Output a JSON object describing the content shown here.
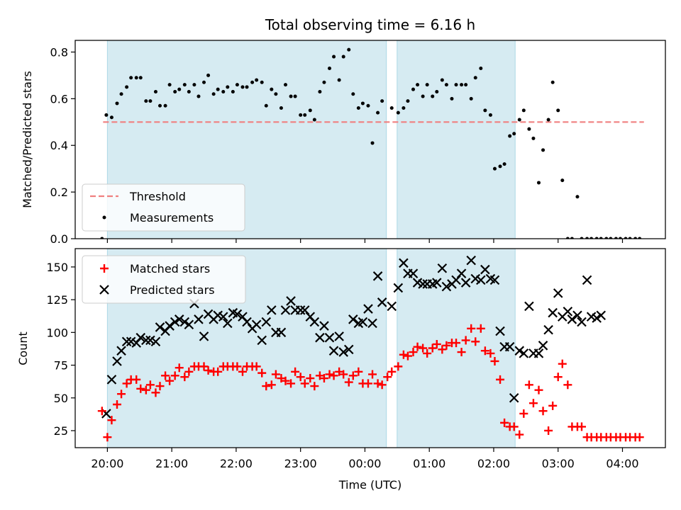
{
  "title": "Total observing time = 6.16 h",
  "colors": {
    "shade": "#add8e6",
    "threshold": "#f08080",
    "measurement": "#000000",
    "matched": "#ff0000",
    "predicted": "#000000"
  },
  "chart_data": [
    {
      "id": "ratio",
      "type": "scatter",
      "ylabel": "Matched/Predicted stars",
      "xlabel": "",
      "ylim": [
        0,
        0.85
      ],
      "yticks": [
        0.0,
        0.2,
        0.4,
        0.6,
        0.8
      ],
      "yticklabels": [
        "0.0",
        "0.2",
        "0.4",
        "0.6",
        "0.8"
      ],
      "legend": {
        "position": "lower-left",
        "items": [
          {
            "label": "Threshold",
            "kind": "dashed-line"
          },
          {
            "label": "Measurements",
            "kind": "dot"
          }
        ]
      },
      "threshold": {
        "y": 0.5,
        "x_start": "19:56",
        "x_end": "04:20"
      },
      "shaded_intervals": [
        [
          "20:00",
          "00:20"
        ],
        [
          "00:30",
          "02:20"
        ]
      ],
      "series": [
        {
          "label": "Measurements",
          "marker": "dot",
          "x": [
            "19:55",
            "19:59",
            "20:04",
            "20:09",
            "20:13",
            "20:18",
            "20:22",
            "20:27",
            "20:31",
            "20:36",
            "20:40",
            "20:45",
            "20:49",
            "20:54",
            "20:58",
            "21:03",
            "21:07",
            "21:12",
            "21:16",
            "21:21",
            "21:25",
            "21:30",
            "21:34",
            "21:39",
            "21:43",
            "21:48",
            "21:52",
            "21:57",
            "22:01",
            "22:06",
            "22:10",
            "22:15",
            "22:19",
            "22:24",
            "22:28",
            "22:33",
            "22:37",
            "22:42",
            "22:46",
            "22:51",
            "22:55",
            "23:00",
            "23:04",
            "23:09",
            "23:13",
            "23:18",
            "23:22",
            "23:27",
            "23:31",
            "23:36",
            "23:40",
            "23:45",
            "23:49",
            "23:54",
            "23:58",
            "00:03",
            "00:07",
            "00:12",
            "00:16",
            "00:25",
            "00:31",
            "00:36",
            "00:40",
            "00:45",
            "00:49",
            "00:54",
            "00:58",
            "01:03",
            "01:07",
            "01:12",
            "01:16",
            "01:21",
            "01:25",
            "01:30",
            "01:34",
            "01:39",
            "01:43",
            "01:48",
            "01:52",
            "01:57",
            "02:01",
            "02:06",
            "02:10",
            "02:15",
            "02:19",
            "02:24",
            "02:28",
            "02:33",
            "02:37",
            "02:42",
            "02:46",
            "02:51",
            "02:55",
            "03:00",
            "03:04",
            "03:09",
            "03:13",
            "03:18",
            "03:22",
            "03:27",
            "03:31",
            "03:36",
            "03:40",
            "03:45",
            "03:49",
            "03:54",
            "03:58",
            "04:03",
            "04:07",
            "04:12",
            "04:16"
          ],
          "y": [
            0.0,
            0.53,
            0.52,
            0.58,
            0.62,
            0.65,
            0.69,
            0.69,
            0.69,
            0.59,
            0.59,
            0.63,
            0.57,
            0.57,
            0.66,
            0.63,
            0.64,
            0.66,
            0.63,
            0.66,
            0.61,
            0.67,
            0.7,
            0.62,
            0.64,
            0.63,
            0.65,
            0.63,
            0.66,
            0.65,
            0.65,
            0.67,
            0.68,
            0.67,
            0.57,
            0.64,
            0.62,
            0.56,
            0.66,
            0.61,
            0.61,
            0.53,
            0.53,
            0.55,
            0.51,
            0.63,
            0.67,
            0.73,
            0.78,
            0.68,
            0.78,
            0.81,
            0.62,
            0.56,
            0.58,
            0.57,
            0.41,
            0.54,
            0.59,
            0.56,
            0.54,
            0.56,
            0.59,
            0.64,
            0.66,
            0.61,
            0.66,
            0.61,
            0.63,
            0.68,
            0.66,
            0.6,
            0.66,
            0.66,
            0.66,
            0.6,
            0.69,
            0.73,
            0.55,
            0.53,
            0.3,
            0.31,
            0.32,
            0.44,
            0.45,
            0.51,
            0.55,
            0.47,
            0.43,
            0.24,
            0.38,
            0.51,
            0.67,
            0.55,
            0.25,
            0.0,
            0.0,
            0.18,
            0.0,
            0.0,
            0.0,
            0.0,
            0.0,
            0.0,
            0.0,
            0.0,
            0.0,
            0.0,
            0.0,
            0.0,
            0.0
          ]
        }
      ]
    },
    {
      "id": "count",
      "type": "scatter",
      "ylabel": "Count",
      "xlabel": "Time (UTC)",
      "ylim": [
        12,
        164
      ],
      "yticks": [
        25,
        50,
        75,
        100,
        125,
        150
      ],
      "yticklabels": [
        "25",
        "50",
        "75",
        "100",
        "125",
        "150"
      ],
      "xlim": [
        "19:30",
        "04:40"
      ],
      "xticks": [
        "20:00",
        "21:00",
        "22:00",
        "23:00",
        "00:00",
        "01:00",
        "02:00",
        "03:00",
        "04:00"
      ],
      "xticklabels": [
        "20:00",
        "21:00",
        "22:00",
        "23:00",
        "00:00",
        "01:00",
        "02:00",
        "03:00",
        "04:00"
      ],
      "legend": {
        "position": "upper-left",
        "items": [
          {
            "label": "Matched stars",
            "kind": "plus"
          },
          {
            "label": "Predicted stars",
            "kind": "x"
          }
        ]
      },
      "shaded_intervals": [
        [
          "20:00",
          "00:20"
        ],
        [
          "00:30",
          "02:20"
        ]
      ],
      "series": [
        {
          "label": "Matched stars",
          "marker": "plus",
          "x": [
            "19:55",
            "20:00",
            "20:04",
            "20:09",
            "20:13",
            "20:18",
            "20:22",
            "20:27",
            "20:31",
            "20:36",
            "20:40",
            "20:45",
            "20:49",
            "20:54",
            "20:58",
            "21:03",
            "21:07",
            "21:12",
            "21:16",
            "21:21",
            "21:25",
            "21:30",
            "21:34",
            "21:39",
            "21:43",
            "21:48",
            "21:52",
            "21:57",
            "22:01",
            "22:06",
            "22:10",
            "22:15",
            "22:19",
            "22:24",
            "22:28",
            "22:33",
            "22:37",
            "22:42",
            "22:46",
            "22:51",
            "22:55",
            "23:00",
            "23:04",
            "23:09",
            "23:13",
            "23:18",
            "23:22",
            "23:27",
            "23:31",
            "23:36",
            "23:40",
            "23:45",
            "23:49",
            "23:54",
            "23:58",
            "00:03",
            "00:07",
            "00:12",
            "00:16",
            "00:21",
            "00:25",
            "00:31",
            "00:36",
            "00:40",
            "00:45",
            "00:49",
            "00:54",
            "00:58",
            "01:03",
            "01:07",
            "01:12",
            "01:16",
            "01:21",
            "01:25",
            "01:30",
            "01:34",
            "01:39",
            "01:43",
            "01:48",
            "01:52",
            "01:57",
            "02:01",
            "02:06",
            "02:10",
            "02:15",
            "02:19",
            "02:24",
            "02:28",
            "02:33",
            "02:37",
            "02:42",
            "02:46",
            "02:51",
            "02:55",
            "03:00",
            "03:04",
            "03:09",
            "03:13",
            "03:18",
            "03:22",
            "03:27",
            "03:31",
            "03:36",
            "03:40",
            "03:45",
            "03:49",
            "03:54",
            "03:58",
            "04:03",
            "04:07",
            "04:12",
            "04:16"
          ],
          "y": [
            40,
            20,
            33,
            45,
            53,
            61,
            64,
            64,
            57,
            56,
            60,
            54,
            59,
            67,
            63,
            67,
            73,
            66,
            70,
            74,
            74,
            74,
            71,
            70,
            70,
            74,
            74,
            74,
            74,
            70,
            74,
            74,
            74,
            69,
            59,
            60,
            68,
            65,
            63,
            61,
            70,
            66,
            61,
            65,
            59,
            67,
            65,
            68,
            67,
            70,
            68,
            62,
            67,
            70,
            61,
            61,
            68,
            61,
            60,
            66,
            70,
            74,
            83,
            82,
            85,
            89,
            88,
            84,
            88,
            91,
            87,
            90,
            92,
            92,
            85,
            94,
            103,
            93,
            103,
            86,
            84,
            78,
            64,
            31,
            28,
            28,
            22,
            38,
            60,
            46,
            56,
            40,
            25,
            44,
            66,
            76,
            60,
            28,
            28,
            28,
            20,
            20,
            20,
            20,
            20,
            20,
            20,
            20,
            20,
            20,
            20,
            20
          ]
        },
        {
          "label": "Predicted stars",
          "marker": "x",
          "x": [
            "19:59",
            "20:04",
            "20:09",
            "20:13",
            "20:18",
            "20:22",
            "20:27",
            "20:31",
            "20:36",
            "20:40",
            "20:45",
            "20:49",
            "20:54",
            "20:58",
            "21:03",
            "21:07",
            "21:12",
            "21:16",
            "21:21",
            "21:25",
            "21:30",
            "21:34",
            "21:39",
            "21:43",
            "21:48",
            "21:52",
            "21:57",
            "22:01",
            "22:06",
            "22:10",
            "22:15",
            "22:19",
            "22:24",
            "22:28",
            "22:33",
            "22:37",
            "22:42",
            "22:46",
            "22:51",
            "22:55",
            "23:00",
            "23:04",
            "23:09",
            "23:13",
            "23:18",
            "23:22",
            "23:27",
            "23:31",
            "23:36",
            "23:40",
            "23:45",
            "23:49",
            "23:54",
            "23:58",
            "00:03",
            "00:07",
            "00:12",
            "00:16",
            "00:25",
            "00:31",
            "00:36",
            "00:40",
            "00:45",
            "00:49",
            "00:54",
            "00:58",
            "01:03",
            "01:07",
            "01:12",
            "01:16",
            "01:21",
            "01:25",
            "01:30",
            "01:34",
            "01:39",
            "01:43",
            "01:48",
            "01:52",
            "01:57",
            "02:01",
            "02:06",
            "02:10",
            "02:15",
            "02:19",
            "02:24",
            "02:28",
            "02:33",
            "02:37",
            "02:42",
            "02:46",
            "02:51",
            "02:55",
            "03:00",
            "03:04",
            "03:09",
            "03:13",
            "03:18",
            "03:22",
            "03:27",
            "03:31",
            "03:36",
            "03:40"
          ],
          "y": [
            38,
            64,
            78,
            86,
            93,
            93,
            92,
            96,
            94,
            94,
            93,
            104,
            101,
            105,
            108,
            110,
            108,
            106,
            122,
            110,
            97,
            114,
            110,
            113,
            112,
            107,
            115,
            114,
            112,
            108,
            103,
            106,
            94,
            108,
            117,
            100,
            100,
            117,
            124,
            117,
            117,
            117,
            112,
            108,
            96,
            105,
            96,
            86,
            97,
            85,
            87,
            110,
            107,
            108,
            118,
            107,
            143,
            123,
            120,
            134,
            153,
            145,
            145,
            138,
            137,
            137,
            137,
            138,
            149,
            135,
            137,
            140,
            145,
            138,
            155,
            141,
            140,
            148,
            141,
            140,
            101,
            89,
            89,
            50,
            86,
            84,
            120,
            84,
            84,
            90,
            102,
            115,
            130,
            112,
            116,
            110,
            113,
            108,
            140,
            112,
            111,
            113
          ]
        }
      ]
    }
  ]
}
